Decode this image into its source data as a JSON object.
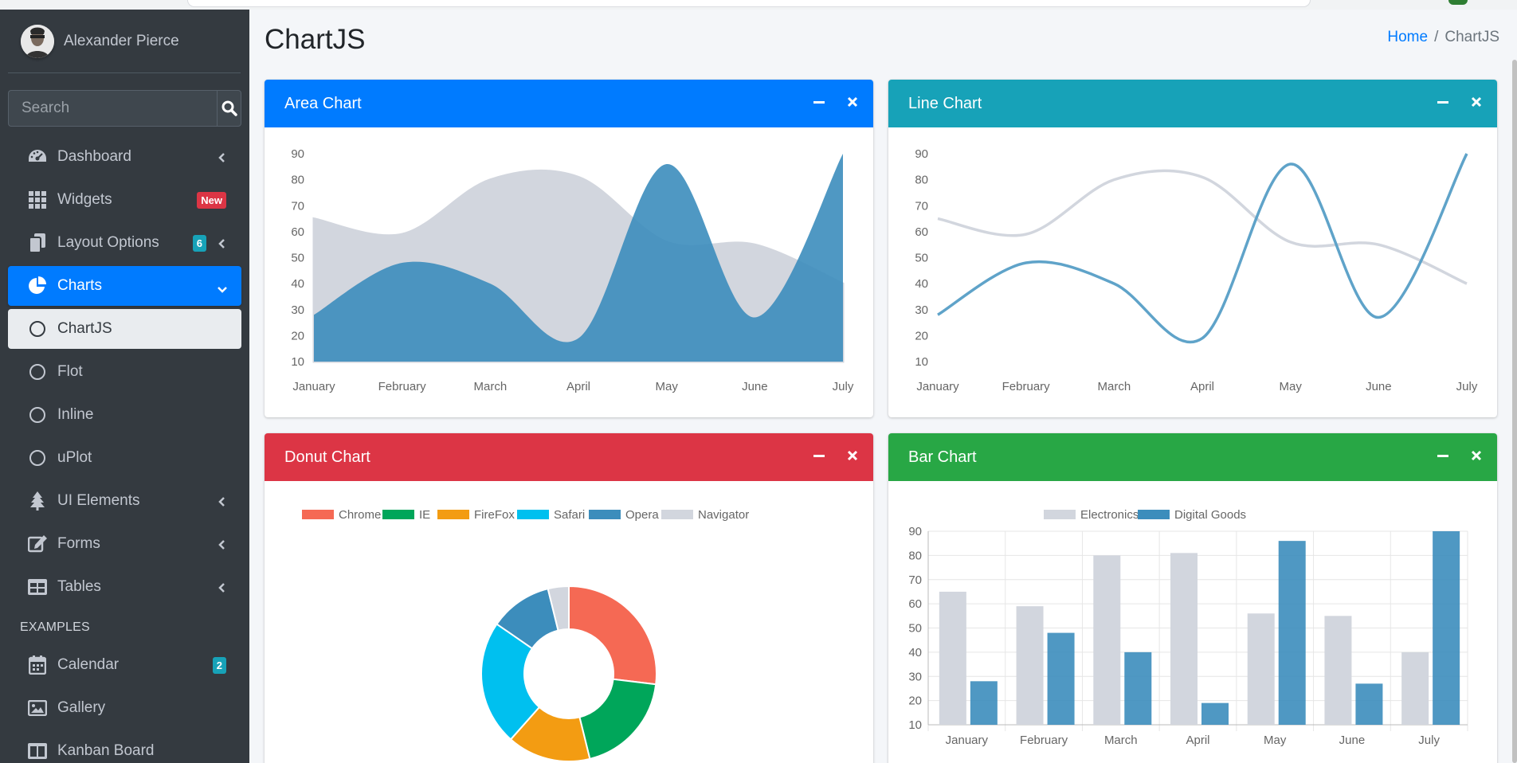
{
  "user": {
    "name": "Alexander Pierce"
  },
  "search": {
    "placeholder": "Search"
  },
  "nav": {
    "items": [
      {
        "label": "Dashboard"
      },
      {
        "label": "Widgets",
        "badge": "New"
      },
      {
        "label": "Layout Options",
        "badge": "6"
      },
      {
        "label": "Charts"
      },
      {
        "label": "ChartJS"
      },
      {
        "label": "Flot"
      },
      {
        "label": "Inline"
      },
      {
        "label": "uPlot"
      },
      {
        "label": "UI Elements"
      },
      {
        "label": "Forms"
      },
      {
        "label": "Tables"
      }
    ],
    "header": "EXAMPLES",
    "examples": [
      {
        "label": "Calendar",
        "badge": "2"
      },
      {
        "label": "Gallery"
      },
      {
        "label": "Kanban Board"
      }
    ]
  },
  "page": {
    "title": "ChartJS"
  },
  "breadcrumb": {
    "home": "Home",
    "sep": "/",
    "current": "ChartJS"
  },
  "colors": {
    "primary": "#007bff",
    "info": "#17a2b8",
    "danger": "#dc3545",
    "success": "#28a745",
    "sidebar": "#343a40",
    "series_blue": "#3c8dbc",
    "series_gray": "#d2d6de"
  },
  "cards": {
    "area": {
      "title": "Area Chart"
    },
    "line": {
      "title": "Line Chart"
    },
    "donut": {
      "title": "Donut Chart"
    },
    "bar": {
      "title": "Bar Chart"
    }
  },
  "chart_data": [
    {
      "id": "area",
      "type": "area",
      "title": "Area Chart",
      "categories": [
        "January",
        "February",
        "March",
        "April",
        "May",
        "June",
        "July"
      ],
      "ylim": [
        10,
        90
      ],
      "yticks": [
        10,
        20,
        30,
        40,
        50,
        60,
        70,
        80,
        90
      ],
      "series": [
        {
          "name": "Digital Goods",
          "values": [
            28,
            48,
            40,
            19,
            86,
            27,
            90
          ],
          "color": "#3c8dbc"
        },
        {
          "name": "Electronics",
          "values": [
            65,
            59,
            80,
            81,
            56,
            55,
            40
          ],
          "color": "#d2d6de"
        }
      ]
    },
    {
      "id": "line",
      "type": "line",
      "title": "Line Chart",
      "categories": [
        "January",
        "February",
        "March",
        "April",
        "May",
        "June",
        "July"
      ],
      "ylim": [
        10,
        90
      ],
      "yticks": [
        10,
        20,
        30,
        40,
        50,
        60,
        70,
        80,
        90
      ],
      "series": [
        {
          "name": "Digital Goods",
          "values": [
            28,
            48,
            40,
            19,
            86,
            27,
            90
          ],
          "color": "#3c8dbc"
        },
        {
          "name": "Electronics",
          "values": [
            65,
            59,
            80,
            81,
            56,
            55,
            40
          ],
          "color": "#d2d6de"
        }
      ]
    },
    {
      "id": "donut",
      "type": "pie",
      "title": "Donut Chart",
      "labels": [
        "Chrome",
        "IE",
        "FireFox",
        "Safari",
        "Opera",
        "Navigator"
      ],
      "values": [
        700,
        500,
        400,
        600,
        300,
        100
      ],
      "colors": [
        "#f56954",
        "#00a65a",
        "#f39c12",
        "#00c0ef",
        "#3c8dbc",
        "#d2d6de"
      ]
    },
    {
      "id": "bar",
      "type": "bar",
      "title": "Bar Chart",
      "categories": [
        "January",
        "February",
        "March",
        "April",
        "May",
        "June",
        "July"
      ],
      "ylim": [
        10,
        90
      ],
      "yticks": [
        10,
        20,
        30,
        40,
        50,
        60,
        70,
        80,
        90
      ],
      "series": [
        {
          "name": "Electronics",
          "values": [
            65,
            59,
            80,
            81,
            56,
            55,
            40
          ],
          "color": "#d2d6de"
        },
        {
          "name": "Digital Goods",
          "values": [
            28,
            48,
            40,
            19,
            86,
            27,
            90
          ],
          "color": "#3c8dbc"
        }
      ]
    }
  ]
}
